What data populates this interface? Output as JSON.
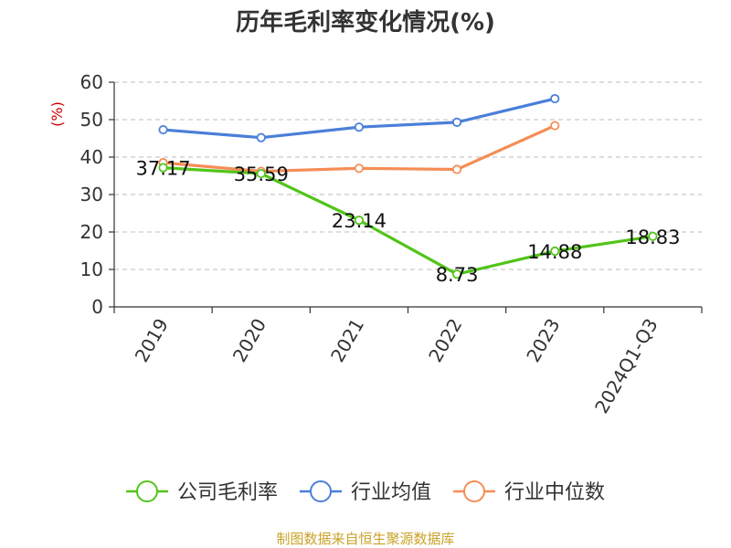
{
  "chart_data": {
    "type": "line",
    "title": "历年毛利率变化情况(%)",
    "ylabel": "(%)",
    "xlabel": "",
    "categories": [
      "2019",
      "2020",
      "2021",
      "2022",
      "2023",
      "2024Q1-Q3"
    ],
    "ylim": [
      0,
      60
    ],
    "yticks": [
      0,
      10,
      20,
      30,
      40,
      50,
      60
    ],
    "grid": true,
    "legend_position": "bottom",
    "series": [
      {
        "name": "公司毛利率",
        "color": "#52c41a",
        "values": [
          37.17,
          35.59,
          23.14,
          8.73,
          14.88,
          18.83
        ],
        "labels": [
          "37.17",
          "35.59",
          "23.14",
          "8.73",
          "14.88",
          "18.83"
        ]
      },
      {
        "name": "行业均值",
        "color": "#4a7fd9",
        "values": [
          47.3,
          45.2,
          48.0,
          49.3,
          55.6,
          null
        ]
      },
      {
        "name": "行业中位数",
        "color": "#f58d55",
        "values": [
          38.5,
          36.2,
          37.0,
          36.7,
          48.4,
          null
        ]
      }
    ]
  },
  "source": {
    "text": "制图数据来自恒生聚源数据库",
    "color": "#c9a227"
  },
  "colors": {
    "axis": "#333333",
    "grid": "#bbbbbb",
    "unit": "#cc0000"
  }
}
